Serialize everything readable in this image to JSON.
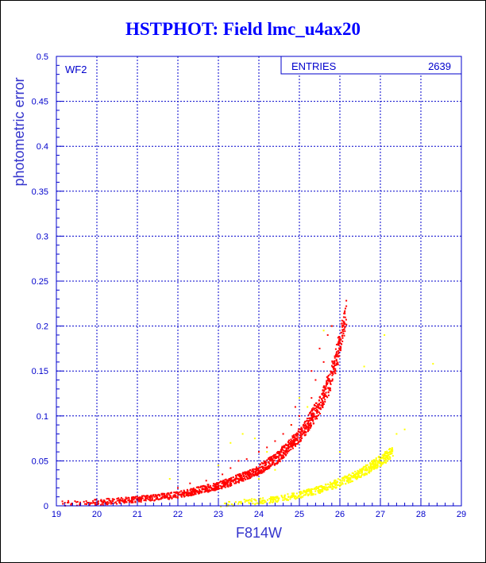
{
  "chart_data": {
    "type": "scatter",
    "title": "HSTPHOT: Field lmc_u4ax20",
    "xlabel": "F814W",
    "ylabel": "photometric error",
    "xlim": [
      19,
      29
    ],
    "ylim": [
      0,
      0.5
    ],
    "x_ticks": [
      "19",
      "20",
      "21",
      "22",
      "23",
      "24",
      "25",
      "26",
      "27",
      "28",
      "29"
    ],
    "y_ticks": [
      "0",
      "0.05",
      "0.1",
      "0.15",
      "0.2",
      "0.25",
      "0.3",
      "0.35",
      "0.4",
      "0.45",
      "0.5"
    ],
    "grid": true,
    "panel_label": "WF2",
    "stats": {
      "label": "ENTRIES",
      "value": "2639"
    },
    "colors": {
      "frame": "#0000cc",
      "grid": "#0000cc",
      "red_series": "#ff0000",
      "yellow_series": "#ffff00"
    },
    "series": [
      {
        "color": "#ff0000",
        "trend": [
          [
            19.0,
            0.002
          ],
          [
            20.0,
            0.004
          ],
          [
            21.0,
            0.007
          ],
          [
            22.0,
            0.012
          ],
          [
            23.0,
            0.022
          ],
          [
            23.5,
            0.03
          ],
          [
            24.0,
            0.04
          ],
          [
            24.5,
            0.055
          ],
          [
            25.0,
            0.078
          ],
          [
            25.25,
            0.093
          ],
          [
            25.5,
            0.112
          ],
          [
            25.75,
            0.138
          ],
          [
            26.0,
            0.18
          ],
          [
            26.15,
            0.215
          ]
        ],
        "outliers": [
          [
            21.5,
            0.012
          ],
          [
            22.0,
            0.02
          ],
          [
            22.3,
            0.025
          ],
          [
            22.7,
            0.028
          ],
          [
            23.1,
            0.035
          ],
          [
            23.3,
            0.042
          ],
          [
            23.5,
            0.05
          ],
          [
            23.7,
            0.052
          ],
          [
            24.0,
            0.06
          ],
          [
            24.2,
            0.065
          ],
          [
            24.4,
            0.072
          ],
          [
            24.6,
            0.08
          ],
          [
            24.8,
            0.09
          ],
          [
            25.0,
            0.1
          ],
          [
            25.3,
            0.12
          ],
          [
            25.4,
            0.14
          ],
          [
            25.6,
            0.16
          ],
          [
            25.7,
            0.19
          ],
          [
            25.8,
            0.2
          ],
          [
            25.3,
            0.15
          ],
          [
            24.9,
            0.11
          ],
          [
            25.5,
            0.175
          ]
        ]
      },
      {
        "color": "#ffff00",
        "trend": [
          [
            23.0,
            0.002
          ],
          [
            24.0,
            0.005
          ],
          [
            24.5,
            0.008
          ],
          [
            25.0,
            0.012
          ],
          [
            25.5,
            0.018
          ],
          [
            26.0,
            0.026
          ],
          [
            26.5,
            0.036
          ],
          [
            27.0,
            0.05
          ],
          [
            27.3,
            0.06
          ]
        ],
        "outliers": [
          [
            21.8,
            0.03
          ],
          [
            22.5,
            0.02
          ],
          [
            23.0,
            0.045
          ],
          [
            23.3,
            0.07
          ],
          [
            23.6,
            0.08
          ],
          [
            23.9,
            0.075
          ],
          [
            24.2,
            0.06
          ],
          [
            24.5,
            0.05
          ],
          [
            24.8,
            0.09
          ],
          [
            25.0,
            0.12
          ],
          [
            25.2,
            0.11
          ],
          [
            25.6,
            0.195
          ],
          [
            25.8,
            0.2
          ],
          [
            26.6,
            0.155
          ],
          [
            27.1,
            0.19
          ],
          [
            27.4,
            0.08
          ],
          [
            27.6,
            0.085
          ],
          [
            28.3,
            0.158
          ],
          [
            23.5,
            0.03
          ],
          [
            24.0,
            0.03
          ],
          [
            22.2,
            0.012
          ],
          [
            24.4,
            0.04
          ],
          [
            26.0,
            0.06
          ]
        ]
      }
    ]
  }
}
